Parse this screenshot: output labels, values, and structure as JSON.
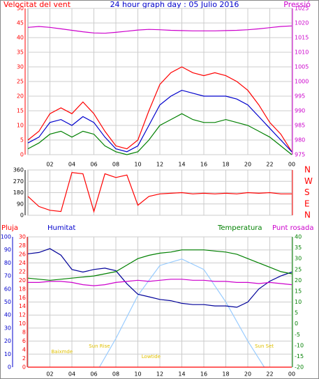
{
  "chart_data": [
    {
      "type": "line",
      "title": "24 hour graph day : 05 Julio 2016",
      "x": [
        0,
        1,
        2,
        3,
        4,
        5,
        6,
        7,
        8,
        9,
        10,
        11,
        12,
        13,
        14,
        15,
        16,
        17,
        18,
        19,
        20,
        21,
        22,
        23,
        24
      ],
      "xlim": [
        0,
        24
      ],
      "xticks": [
        {
          "value": 2,
          "label": "02"
        },
        {
          "value": 4,
          "label": "04"
        },
        {
          "value": 6,
          "label": "06"
        },
        {
          "value": 8,
          "label": "08"
        },
        {
          "value": 10,
          "label": "10"
        },
        12,
        14,
        16,
        18,
        20,
        22,
        {
          "value": 24,
          "label": "00"
        }
      ],
      "axes": [
        {
          "label": "Velocitat del vent",
          "color": "#ff0000",
          "side": "left",
          "grid": true,
          "lim": [
            0,
            50
          ],
          "ticks": [
            0,
            5,
            10,
            15,
            20,
            25,
            30,
            35,
            40,
            45,
            50
          ]
        },
        {
          "label": "Pressió",
          "color": "#cc00cc",
          "side": "right",
          "grid": false,
          "lim": [
            975,
            1025
          ],
          "ticks": [
            975,
            980,
            985,
            990,
            995,
            1000,
            1005,
            1010,
            1015,
            1020,
            1025
          ]
        }
      ],
      "series": [
        {
          "axis": 0,
          "color": "#ff0000",
          "values": [
            5,
            8,
            14,
            16,
            14,
            18,
            14,
            8,
            3,
            2,
            5,
            15,
            24,
            28,
            30,
            28,
            27,
            28,
            27,
            25,
            22,
            17,
            11,
            7,
            1
          ]
        },
        {
          "axis": 0,
          "color": "#008000",
          "values": [
            2,
            4,
            7,
            8,
            6,
            8,
            7,
            3,
            1,
            0,
            1,
            5,
            10,
            12,
            14,
            12,
            11,
            11,
            12,
            11,
            10,
            8,
            6,
            3,
            0
          ]
        },
        {
          "axis": 0,
          "color": "#0000cc",
          "values": [
            4,
            6,
            11,
            12,
            10,
            13,
            11,
            6,
            2,
            1,
            3,
            10,
            17,
            20,
            22,
            21,
            20,
            20,
            20,
            19,
            17,
            13,
            9,
            5,
            1
          ]
        },
        {
          "axis": 1,
          "color": "#cc00cc",
          "values": [
            1018.5,
            1018.8,
            1018.5,
            1018,
            1017.5,
            1017,
            1016.6,
            1016.5,
            1016.8,
            1017.2,
            1017.6,
            1017.8,
            1017.7,
            1017.5,
            1017.4,
            1017.3,
            1017.3,
            1017.3,
            1017.4,
            1017.5,
            1017.7,
            1018,
            1018.4,
            1018.8,
            1019
          ]
        }
      ]
    },
    {
      "type": "line",
      "x": [
        0,
        1,
        2,
        3,
        4,
        5,
        6,
        7,
        8,
        9,
        10,
        11,
        12,
        13,
        14,
        15,
        16,
        17,
        18,
        19,
        20,
        21,
        22,
        23,
        24
      ],
      "xlim": [
        0,
        24
      ],
      "axes": [
        {
          "color": "#000000",
          "side": "left",
          "grid": true,
          "lim": [
            0,
            360
          ],
          "ticks": [
            0,
            90,
            180,
            270,
            360
          ]
        },
        {
          "color": "#ff0000",
          "side": "right",
          "grid": false,
          "lim": [
            0,
            360
          ],
          "ticks": [
            {
              "value": 360,
              "label": "N"
            },
            {
              "value": 270,
              "label": "W"
            },
            {
              "value": 180,
              "label": "S"
            },
            {
              "value": 90,
              "label": "E"
            },
            {
              "value": 0,
              "label": "N"
            }
          ]
        }
      ],
      "series": [
        {
          "axis": 0,
          "color": "#ff0000",
          "values": [
            150,
            70,
            40,
            30,
            340,
            330,
            30,
            330,
            300,
            320,
            80,
            150,
            170,
            175,
            180,
            170,
            175,
            170,
            175,
            170,
            180,
            175,
            180,
            170,
            170
          ]
        }
      ]
    },
    {
      "type": "line",
      "x": [
        0,
        1,
        2,
        3,
        4,
        5,
        6,
        7,
        8,
        9,
        10,
        11,
        12,
        13,
        14,
        15,
        16,
        17,
        18,
        19,
        20,
        21,
        22,
        23,
        24
      ],
      "xlim": [
        0,
        24
      ],
      "xticks": [
        {
          "value": 2,
          "label": "02"
        },
        {
          "value": 4,
          "label": "04"
        },
        {
          "value": 6,
          "label": "06"
        },
        {
          "value": 8,
          "label": "08"
        },
        {
          "value": 10,
          "label": "10"
        },
        12,
        14,
        16,
        18,
        20,
        22,
        {
          "value": 24,
          "label": "00"
        }
      ],
      "axes": [
        {
          "label": "Pluja",
          "color": "#ff0000",
          "side": "left",
          "grid": false,
          "lim": [
            0,
            30
          ],
          "ticks": [
            0,
            2,
            4,
            6,
            8,
            10,
            12,
            14,
            16,
            18,
            20,
            22,
            24,
            26,
            28,
            30
          ]
        },
        {
          "label": "Humitat",
          "color": "#0000cc",
          "side": "left",
          "grid": true,
          "lim": [
            0,
            100
          ],
          "ticks": [
            0,
            10,
            20,
            30,
            40,
            50,
            60,
            70,
            80,
            90,
            100
          ]
        },
        {
          "label": "Temperatura",
          "color": "#008000",
          "side": "right",
          "grid": false,
          "lim": [
            -20,
            40
          ],
          "ticks": [
            -20,
            -15,
            -10,
            -5,
            0,
            5,
            10,
            15,
            20,
            25,
            30,
            35,
            40
          ]
        }
      ],
      "series": [
        {
          "axis": 1,
          "color": "#99ccff",
          "x": [
            6.5,
            8,
            10,
            12,
            14,
            16,
            18,
            20,
            21.5
          ],
          "values": [
            0,
            22,
            55,
            78,
            83,
            75,
            50,
            20,
            0
          ]
        },
        {
          "axis": 0,
          "color": "#ff0000",
          "x": [
            0,
            24
          ],
          "values": [
            0,
            0
          ]
        },
        {
          "axis": 1,
          "color": "#000099",
          "values": [
            87,
            88,
            91,
            86,
            75,
            73,
            75,
            76,
            74,
            64,
            56,
            54,
            52,
            51,
            49,
            48,
            48,
            47,
            47,
            46,
            50,
            60,
            66,
            70,
            73
          ]
        },
        {
          "axis": 2,
          "color": "#008000",
          "values": [
            21,
            20.5,
            20,
            20.5,
            21,
            21.5,
            22,
            23,
            24,
            27,
            30,
            31.5,
            32.5,
            33,
            34,
            34,
            34,
            33.5,
            33,
            32,
            30,
            28,
            26,
            24,
            23
          ]
        },
        {
          "axis": 2,
          "name": "Punt rosada",
          "color": "#cc00cc",
          "values": [
            19,
            19,
            19.5,
            19.5,
            19,
            18,
            17.5,
            18,
            19,
            19.5,
            20,
            19.5,
            20,
            20.5,
            20.5,
            20,
            20,
            19.5,
            19.5,
            19,
            19,
            18.5,
            19,
            18.5,
            18
          ]
        }
      ],
      "annotations": [
        {
          "text": "Baixmde",
          "x": 3.1
        },
        {
          "text": "Sun Rise",
          "x": 6.5
        },
        {
          "text": "Lowtide",
          "x": 11.2
        },
        {
          "text": "Sun Set",
          "x": 21.5
        }
      ]
    }
  ]
}
